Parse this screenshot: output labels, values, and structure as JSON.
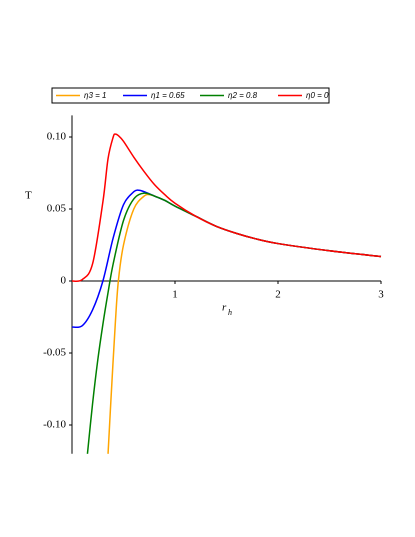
{
  "chart_data": {
    "type": "line",
    "x_label": "r",
    "x_label_sub": "h",
    "y_label": "T",
    "xlim": [
      0,
      3
    ],
    "ylim": [
      -0.12,
      0.115
    ],
    "xticks": [
      1,
      2,
      3
    ],
    "yticks": [
      {
        "value": -0.1,
        "label": "-0.10"
      },
      -0.05,
      0,
      0.05,
      {
        "value": 0.1,
        "label": "0.10"
      }
    ],
    "series": [
      {
        "name": "η3 = 1",
        "color": "#ffa500",
        "x": [
          0.35,
          0.38,
          0.42,
          0.45,
          0.5,
          0.6,
          0.7,
          0.75,
          0.8,
          0.9,
          1.0,
          1.2,
          1.4,
          1.6,
          1.8,
          2.0,
          2.5,
          3.0
        ],
        "values": [
          -0.12,
          -0.08,
          -0.03,
          0.0,
          0.025,
          0.05,
          0.059,
          0.06,
          0.059,
          0.056,
          0.052,
          0.045,
          0.038,
          0.033,
          0.029,
          0.026,
          0.021,
          0.017
        ]
      },
      {
        "name": "η1 = 0.65",
        "color": "#0000ff",
        "x": [
          0,
          0.1,
          0.2,
          0.3,
          0.4,
          0.5,
          0.6,
          0.65,
          0.7,
          0.8,
          0.9,
          1.0,
          1.2,
          1.4,
          1.6,
          1.8,
          2.0,
          2.5,
          3.0
        ],
        "values": [
          -0.032,
          -0.031,
          -0.02,
          0.0,
          0.03,
          0.053,
          0.062,
          0.063,
          0.062,
          0.059,
          0.056,
          0.052,
          0.045,
          0.038,
          0.033,
          0.029,
          0.026,
          0.021,
          0.017
        ]
      },
      {
        "name": "η2 = 0.8",
        "color": "#008000",
        "x": [
          0.15,
          0.2,
          0.25,
          0.3,
          0.35,
          0.4,
          0.5,
          0.6,
          0.7,
          0.8,
          0.9,
          1.0,
          1.2,
          1.4,
          1.6,
          1.8,
          2.0,
          2.5,
          3.0
        ],
        "values": [
          -0.12,
          -0.085,
          -0.055,
          -0.03,
          -0.008,
          0.012,
          0.042,
          0.057,
          0.061,
          0.059,
          0.056,
          0.052,
          0.045,
          0.038,
          0.033,
          0.029,
          0.026,
          0.021,
          0.017
        ]
      },
      {
        "name": "η0 = 0",
        "color": "#ff0000",
        "x": [
          0,
          0.1,
          0.2,
          0.3,
          0.35,
          0.4,
          0.42,
          0.45,
          0.5,
          0.6,
          0.7,
          0.8,
          0.9,
          1.0,
          1.2,
          1.4,
          1.6,
          1.8,
          2.0,
          2.5,
          3.0
        ],
        "values": [
          0,
          0.001,
          0.012,
          0.055,
          0.085,
          0.1,
          0.102,
          0.101,
          0.097,
          0.086,
          0.076,
          0.067,
          0.06,
          0.054,
          0.045,
          0.038,
          0.033,
          0.029,
          0.026,
          0.021,
          0.017
        ]
      }
    ]
  }
}
